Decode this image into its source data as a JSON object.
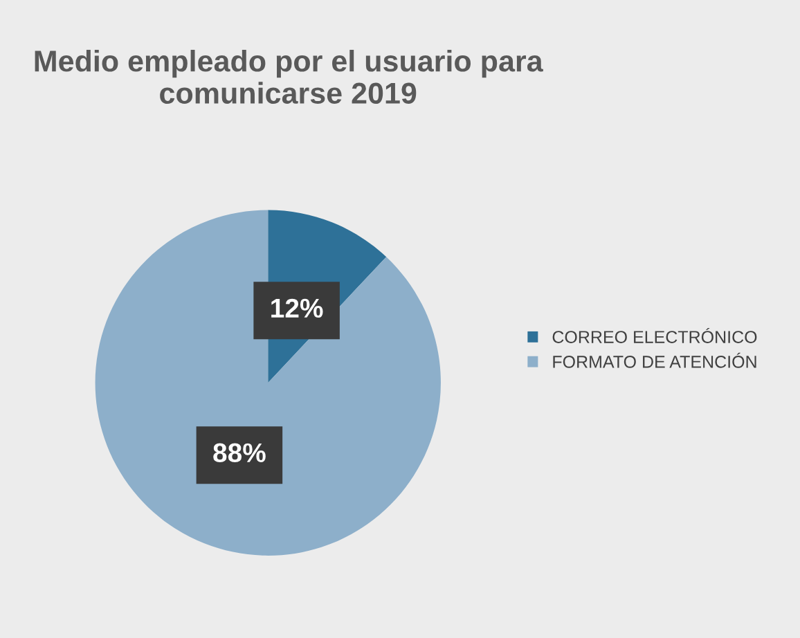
{
  "chart_data": {
    "type": "pie",
    "title": "Medio empleado por el usuario para comunicarse 2019",
    "categories": [
      "CORREO ELECTRÓNICO",
      "FORMATO DE ATENCIÓN"
    ],
    "values": [
      12,
      88
    ],
    "colors": [
      "#2e7198",
      "#8dafca"
    ],
    "value_labels": [
      "12%",
      "88%"
    ],
    "legend": "right"
  }
}
